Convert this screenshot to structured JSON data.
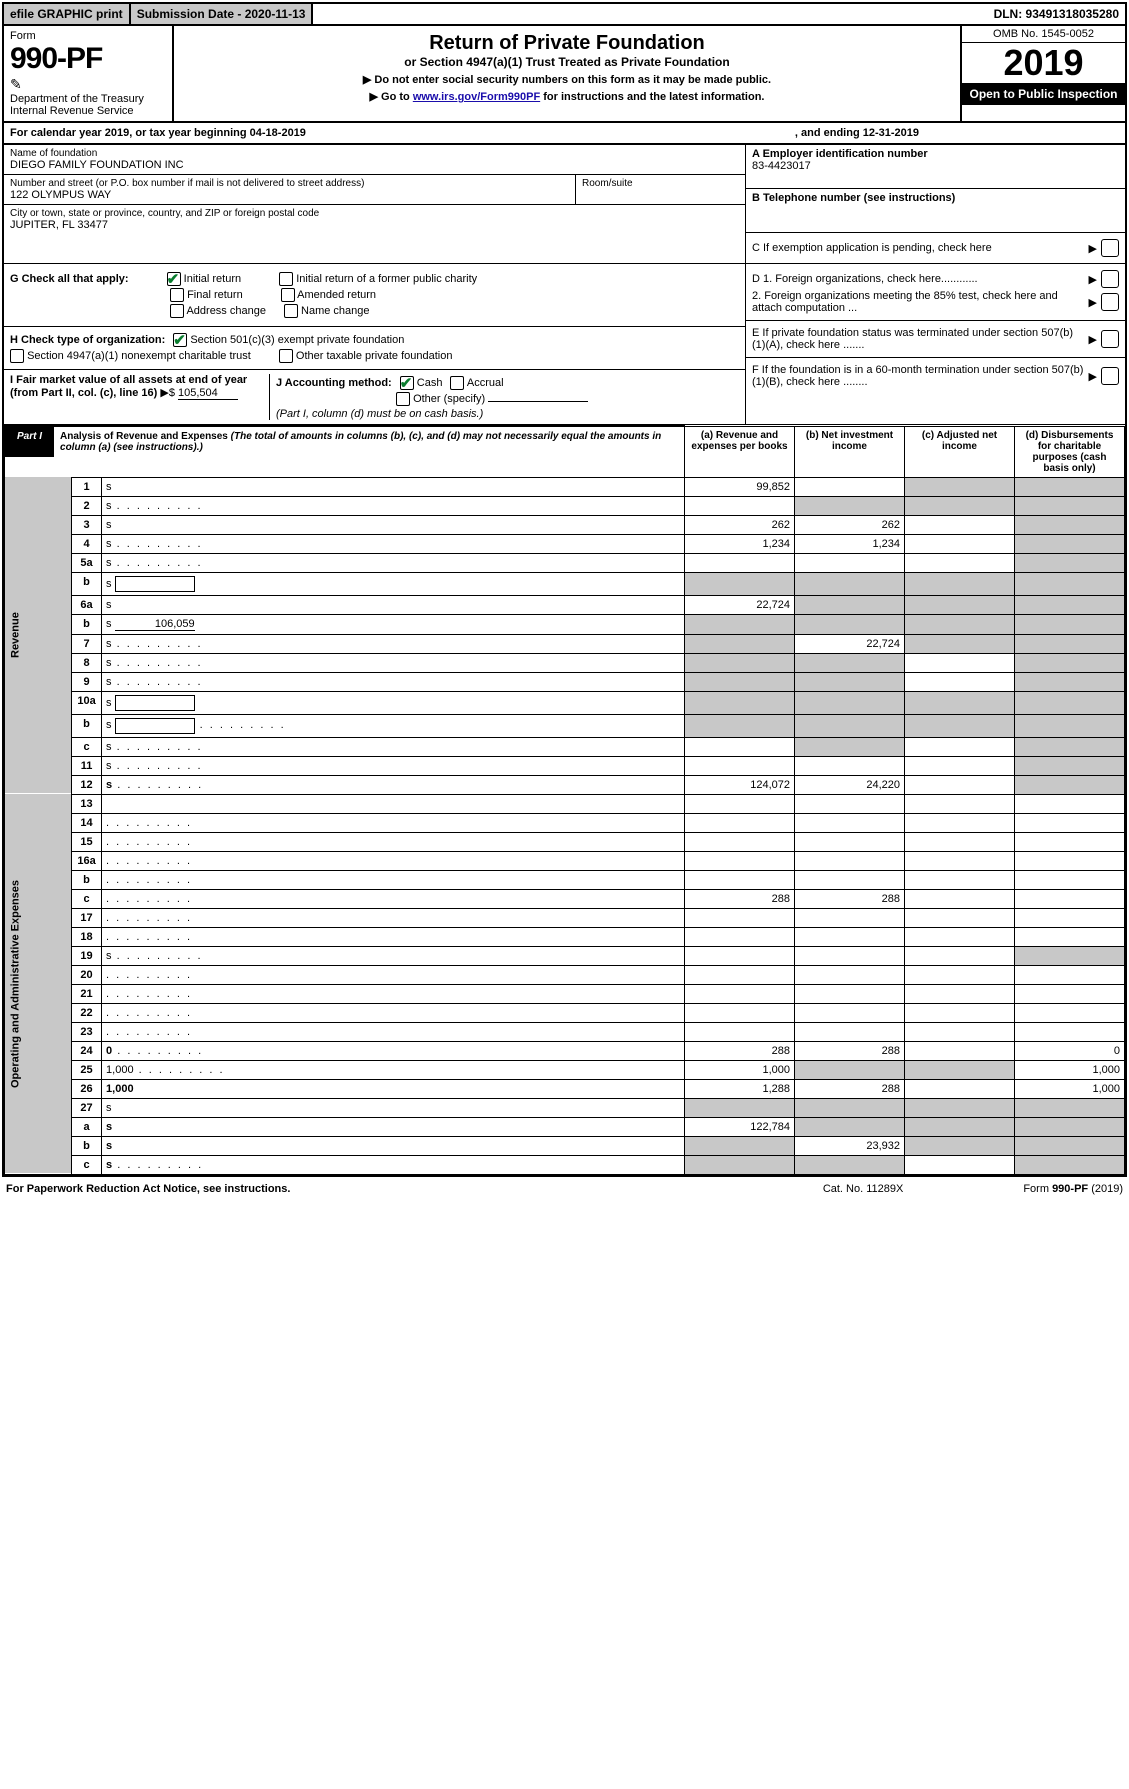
{
  "topbar": {
    "efile_label": "efile GRAPHIC print",
    "submission_label": "Submission Date - 2020-11-13",
    "dln_label": "DLN: 93491318035280"
  },
  "header": {
    "form_label": "Form",
    "form_number": "990-PF",
    "dept": "Department of the Treasury",
    "irs": "Internal Revenue Service",
    "title": "Return of Private Foundation",
    "subtitle": "or Section 4947(a)(1) Trust Treated as Private Foundation",
    "instr1": "▶ Do not enter social security numbers on this form as it may be made public.",
    "instr2_pre": "▶ Go to ",
    "instr2_link": "www.irs.gov/Form990PF",
    "instr2_post": " for instructions and the latest information.",
    "omb": "OMB No. 1545-0052",
    "year": "2019",
    "open": "Open to Public Inspection"
  },
  "calyear": {
    "text1": "For calendar year 2019, or tax year beginning 04-18-2019",
    "text2": ", and ending 12-31-2019"
  },
  "info": {
    "name_label": "Name of foundation",
    "name_val": "DIEGO FAMILY FOUNDATION INC",
    "addr_label": "Number and street (or P.O. box number if mail is not delivered to street address)",
    "addr_val": "122 OLYMPUS WAY",
    "room_label": "Room/suite",
    "city_label": "City or town, state or province, country, and ZIP or foreign postal code",
    "city_val": "JUPITER, FL  33477",
    "ein_label": "A Employer identification number",
    "ein_val": "83-4423017",
    "tel_label": "B Telephone number (see instructions)",
    "c_label": "C If exemption application is pending, check here",
    "d1": "D 1. Foreign organizations, check here............",
    "d2": "2. Foreign organizations meeting the 85% test, check here and attach computation ...",
    "e": "E  If private foundation status was terminated under section 507(b)(1)(A), check here .......",
    "f": "F  If the foundation is in a 60-month termination under section 507(b)(1)(B), check here ........"
  },
  "g": {
    "label": "G Check all that apply:",
    "initial": "Initial return",
    "initial_former": "Initial return of a former public charity",
    "final": "Final return",
    "amended": "Amended return",
    "addr_change": "Address change",
    "name_change": "Name change"
  },
  "h": {
    "label": "H Check type of organization:",
    "s501": "Section 501(c)(3) exempt private foundation",
    "s4947": "Section 4947(a)(1) nonexempt charitable trust",
    "other_tax": "Other taxable private foundation"
  },
  "i": {
    "label": "I Fair market value of all assets at end of year (from Part II, col. (c), line 16)",
    "arrow": "▶$",
    "val": "105,504"
  },
  "j": {
    "label": "J Accounting method:",
    "cash": "Cash",
    "accrual": "Accrual",
    "other": "Other (specify)",
    "note": "(Part I, column (d) must be on cash basis.)"
  },
  "part1": {
    "tab": "Part I",
    "title": "Analysis of Revenue and Expenses",
    "note": "(The total of amounts in columns (b), (c), and (d) may not necessarily equal the amounts in column (a) (see instructions).)",
    "col_a": "(a)  Revenue and expenses per books",
    "col_b": "(b)  Net investment income",
    "col_c": "(c)  Adjusted net income",
    "col_d": "(d)  Disbursements for charitable purposes (cash basis only)"
  },
  "sections": {
    "revenue": "Revenue",
    "expenses": "Operating and Administrative Expenses"
  },
  "rows": [
    {
      "n": "1",
      "d": "s",
      "a": "99,852",
      "b": "",
      "c": "s"
    },
    {
      "n": "2",
      "d": "s",
      "dots": true,
      "a": "",
      "b": "s",
      "c": "s"
    },
    {
      "n": "3",
      "d": "s",
      "a": "262",
      "b": "262",
      "c": ""
    },
    {
      "n": "4",
      "d": "s",
      "dots": true,
      "a": "1,234",
      "b": "1,234",
      "c": ""
    },
    {
      "n": "5a",
      "d": "s",
      "dots": true,
      "a": "",
      "b": "",
      "c": ""
    },
    {
      "n": "b",
      "d": "s",
      "box": true,
      "a": "s",
      "b": "s",
      "c": "s"
    },
    {
      "n": "6a",
      "d": "s",
      "a": "22,724",
      "b": "s",
      "c": "s"
    },
    {
      "n": "b",
      "d": "s",
      "inline": "106,059",
      "a": "s",
      "b": "s",
      "c": "s"
    },
    {
      "n": "7",
      "d": "s",
      "dots": true,
      "a": "s",
      "b": "22,724",
      "c": "s"
    },
    {
      "n": "8",
      "d": "s",
      "dots": true,
      "a": "s",
      "b": "s",
      "c": ""
    },
    {
      "n": "9",
      "d": "s",
      "dots": true,
      "a": "s",
      "b": "s",
      "c": ""
    },
    {
      "n": "10a",
      "d": "s",
      "box": true,
      "a": "s",
      "b": "s",
      "c": "s"
    },
    {
      "n": "b",
      "d": "s",
      "dots": true,
      "box": true,
      "a": "s",
      "b": "s",
      "c": "s"
    },
    {
      "n": "c",
      "d": "s",
      "dots": true,
      "a": "",
      "b": "s",
      "c": ""
    },
    {
      "n": "11",
      "d": "s",
      "dots": true,
      "a": "",
      "b": "",
      "c": ""
    },
    {
      "n": "12",
      "d": "s",
      "dots": true,
      "bold": true,
      "a": "124,072",
      "b": "24,220",
      "c": ""
    },
    {
      "n": "13",
      "d": "",
      "a": "",
      "b": "",
      "c": ""
    },
    {
      "n": "14",
      "d": "",
      "dots": true,
      "a": "",
      "b": "",
      "c": ""
    },
    {
      "n": "15",
      "d": "",
      "dots": true,
      "a": "",
      "b": "",
      "c": ""
    },
    {
      "n": "16a",
      "d": "",
      "dots": true,
      "a": "",
      "b": "",
      "c": ""
    },
    {
      "n": "b",
      "d": "",
      "dots": true,
      "a": "",
      "b": "",
      "c": ""
    },
    {
      "n": "c",
      "d": "",
      "dots": true,
      "a": "288",
      "b": "288",
      "c": ""
    },
    {
      "n": "17",
      "d": "",
      "dots": true,
      "a": "",
      "b": "",
      "c": ""
    },
    {
      "n": "18",
      "d": "",
      "dots": true,
      "a": "",
      "b": "",
      "c": ""
    },
    {
      "n": "19",
      "d": "s",
      "dots": true,
      "a": "",
      "b": "",
      "c": ""
    },
    {
      "n": "20",
      "d": "",
      "dots": true,
      "a": "",
      "b": "",
      "c": ""
    },
    {
      "n": "21",
      "d": "",
      "dots": true,
      "a": "",
      "b": "",
      "c": ""
    },
    {
      "n": "22",
      "d": "",
      "dots": true,
      "a": "",
      "b": "",
      "c": ""
    },
    {
      "n": "23",
      "d": "",
      "dots": true,
      "a": "",
      "b": "",
      "c": ""
    },
    {
      "n": "24",
      "d": "0",
      "dots": true,
      "bold": true,
      "a": "288",
      "b": "288",
      "c": ""
    },
    {
      "n": "25",
      "d": "1,000",
      "dots": true,
      "a": "1,000",
      "b": "s",
      "c": "s"
    },
    {
      "n": "26",
      "d": "1,000",
      "bold": true,
      "a": "1,288",
      "b": "288",
      "c": ""
    },
    {
      "n": "27",
      "d": "s",
      "a": "s",
      "b": "s",
      "c": "s"
    },
    {
      "n": "a",
      "d": "s",
      "bold": true,
      "a": "122,784",
      "b": "s",
      "c": "s"
    },
    {
      "n": "b",
      "d": "s",
      "bold": true,
      "a": "s",
      "b": "23,932",
      "c": "s"
    },
    {
      "n": "c",
      "d": "s",
      "dots": true,
      "bold": true,
      "a": "s",
      "b": "s",
      "c": ""
    }
  ],
  "footer": {
    "left": "For Paperwork Reduction Act Notice, see instructions.",
    "mid": "Cat. No. 11289X",
    "right": "Form 990-PF (2019)"
  },
  "colors": {
    "shade": "#c8c8c8",
    "check": "#0a7d2f",
    "link": "#1a0dab"
  }
}
